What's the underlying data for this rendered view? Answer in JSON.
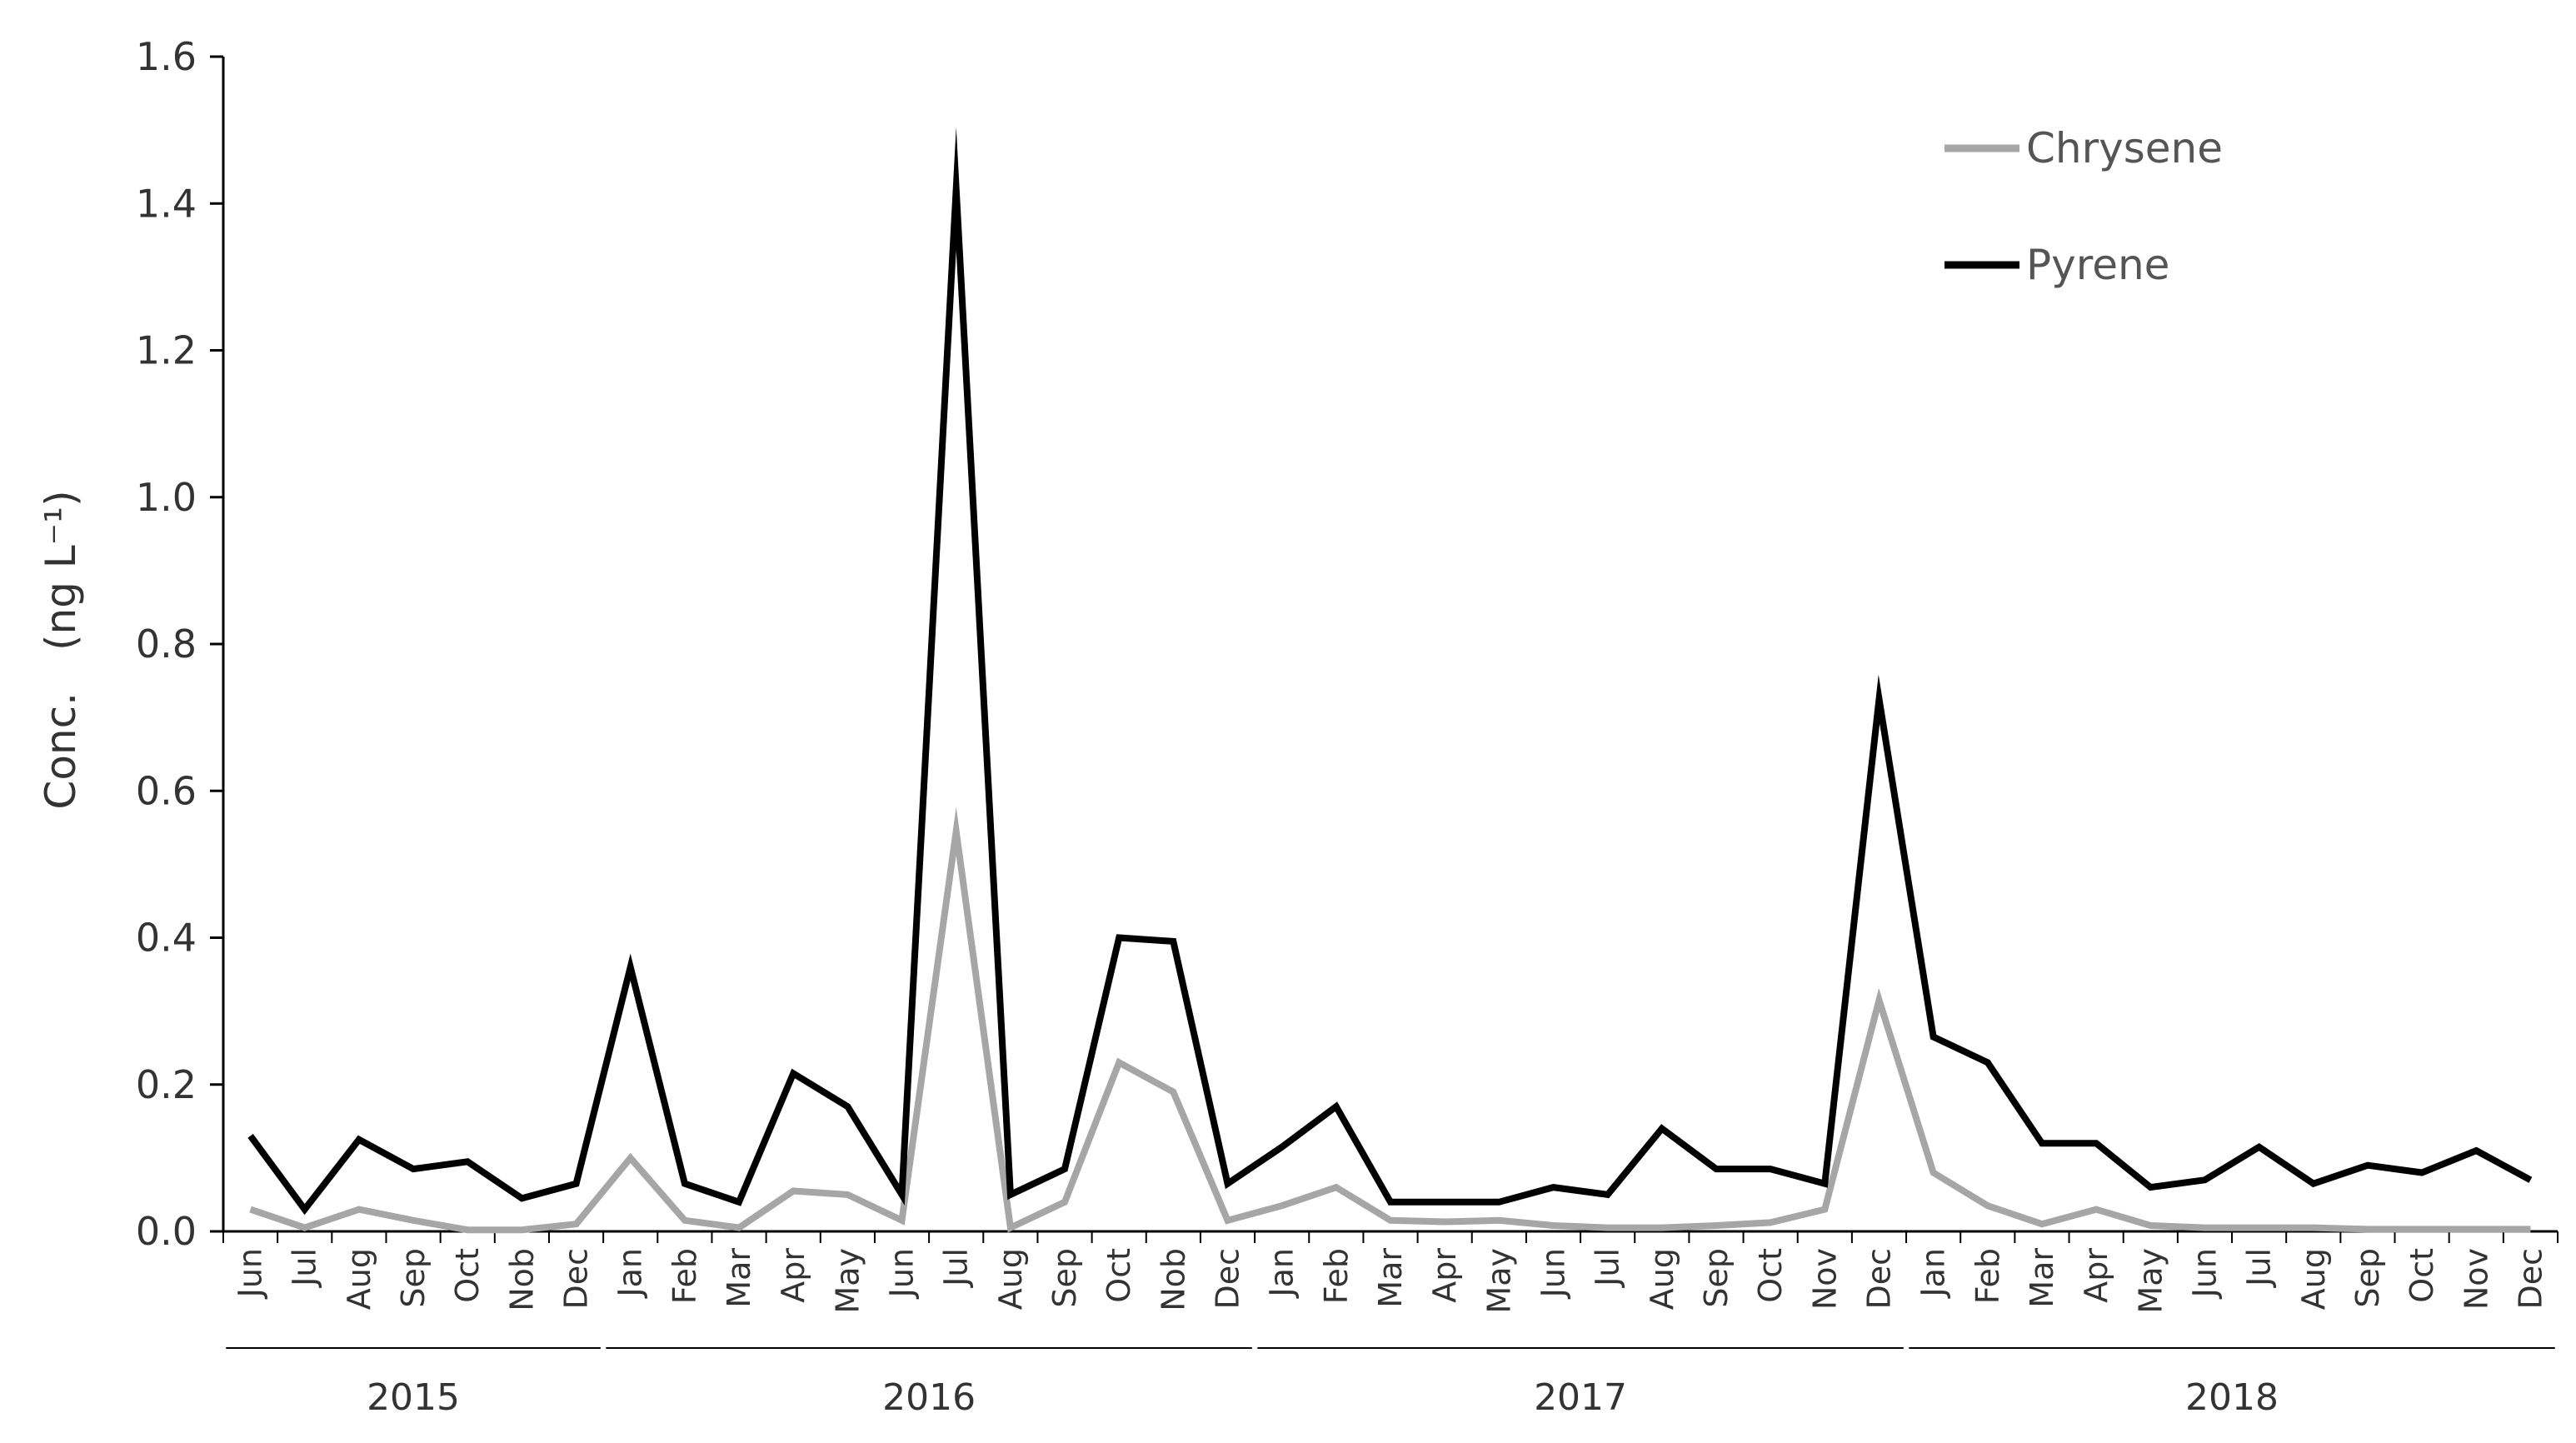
{
  "chart_data": {
    "type": "line",
    "title": "",
    "xlabel": "",
    "ylabel": "Conc.　(ng L⁻¹)",
    "ylim": [
      0,
      1.6
    ],
    "yticks": [
      "0.0",
      "0.2",
      "0.4",
      "0.6",
      "0.8",
      "1.0",
      "1.2",
      "1.4",
      "1.6"
    ],
    "grid": false,
    "legend_position": "top-right",
    "categories": [
      "Jun",
      "Jul",
      "Aug",
      "Sep",
      "Oct",
      "Nob",
      "Dec",
      "Jan",
      "Feb",
      "Mar",
      "Apr",
      "May",
      "Jun",
      "Jul",
      "Aug",
      "Sep",
      "Oct",
      "Nob",
      "Dec",
      "Jan",
      "Feb",
      "Mar",
      "Apr",
      "May",
      "Jun",
      "Jul",
      "Aug",
      "Sep",
      "Oct",
      "Nov",
      "Dec",
      "Jan",
      "Feb",
      "Mar",
      "Apr",
      "May",
      "Jun",
      "Jul",
      "Aug",
      "Sep",
      "Oct",
      "Nov",
      "Dec"
    ],
    "year_groups": [
      {
        "label": "2015",
        "start": 0,
        "end": 6
      },
      {
        "label": "2016",
        "start": 7,
        "end": 18
      },
      {
        "label": "2017",
        "start": 19,
        "end": 30
      },
      {
        "label": "2018",
        "start": 31,
        "end": 42
      }
    ],
    "series": [
      {
        "name": "Chrysene",
        "color": "#a6a6a6",
        "values": [
          0.03,
          0.005,
          0.03,
          0.015,
          0.002,
          0.002,
          0.01,
          0.1,
          0.015,
          0.005,
          0.055,
          0.05,
          0.015,
          0.545,
          0.005,
          0.04,
          0.23,
          0.19,
          0.015,
          0.035,
          0.06,
          0.015,
          0.013,
          0.015,
          0.008,
          0.005,
          0.005,
          0.008,
          0.012,
          0.03,
          0.315,
          0.08,
          0.035,
          0.01,
          0.03,
          0.008,
          0.005,
          0.005,
          0.005,
          0.003,
          0.003,
          0.003,
          0.003
        ]
      },
      {
        "name": "Pyrene",
        "color": "#000000",
        "values": [
          0.13,
          0.03,
          0.125,
          0.085,
          0.095,
          0.045,
          0.065,
          0.36,
          0.065,
          0.04,
          0.215,
          0.17,
          0.05,
          1.42,
          0.05,
          0.085,
          0.4,
          0.395,
          0.065,
          0.115,
          0.17,
          0.04,
          0.04,
          0.04,
          0.06,
          0.05,
          0.14,
          0.085,
          0.085,
          0.065,
          0.725,
          0.265,
          0.23,
          0.12,
          0.12,
          0.06,
          0.07,
          0.115,
          0.065,
          0.09,
          0.08,
          0.11,
          0.07
        ]
      }
    ]
  }
}
